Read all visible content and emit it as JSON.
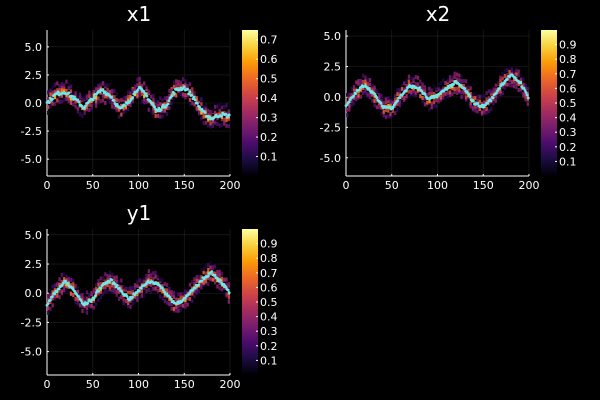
{
  "figure": {
    "background": "#000000",
    "foreground": "#ffffff",
    "trace_color": "#6ee6f0"
  },
  "colormap": [
    "#000004",
    "#1b0c41",
    "#4a0c6b",
    "#781c6d",
    "#a52c60",
    "#cf4446",
    "#ed6925",
    "#fb9b06",
    "#f7d13d",
    "#fcffa4"
  ],
  "chart_data": [
    {
      "type": "heatmap",
      "title": "x1",
      "xlim": [
        0,
        200
      ],
      "ylim": [
        -6.5,
        6.5
      ],
      "xticks": [
        "0",
        "50",
        "100",
        "150",
        "200"
      ],
      "yticks": [
        "-5.0",
        "-2.5",
        "0.0",
        "2.5",
        "5.0"
      ],
      "colorbar": {
        "min": 0.0,
        "max": 0.75,
        "ticks": [
          "0.1",
          "0.2",
          "0.3",
          "0.4",
          "0.5",
          "0.6",
          "0.7"
        ]
      },
      "trace": {
        "mean": [
          0,
          0.8,
          1.0,
          0.4,
          -0.4,
          0.4,
          1.2,
          0.6,
          -0.6,
          0.2,
          1.4,
          0.5,
          -0.7,
          -0.2,
          1.1,
          1.4,
          0.5,
          -0.8,
          -1.4,
          -1.0,
          -1.2
        ],
        "noise": 0.55
      }
    },
    {
      "type": "heatmap",
      "title": "x2",
      "xlim": [
        0,
        200
      ],
      "ylim": [
        -6.5,
        5.5
      ],
      "xticks": [
        "0",
        "50",
        "100",
        "150",
        "200"
      ],
      "yticks": [
        "-5.0",
        "-2.5",
        "0.0",
        "2.5",
        "5.0"
      ],
      "colorbar": {
        "min": 0.0,
        "max": 1.0,
        "ticks": [
          "0.1",
          "0.2",
          "0.3",
          "0.4",
          "0.5",
          "0.6",
          "0.7",
          "0.8",
          "0.9"
        ]
      },
      "trace": {
        "mean": [
          -0.8,
          0.3,
          1.0,
          0.3,
          -0.8,
          -0.9,
          0.1,
          0.9,
          0.7,
          -0.2,
          0.1,
          0.7,
          1.2,
          0.6,
          -0.5,
          -0.8,
          -0.1,
          1.0,
          1.8,
          1.2,
          -0.1
        ],
        "noise": 0.35
      }
    },
    {
      "type": "heatmap",
      "title": "y1",
      "xlim": [
        0,
        200
      ],
      "ylim": [
        -7,
        5.5
      ],
      "xticks": [
        "0",
        "50",
        "100",
        "150",
        "200"
      ],
      "yticks": [
        "-5.0",
        "-2.5",
        "0.0",
        "2.5",
        "5.0"
      ],
      "colorbar": {
        "min": 0.0,
        "max": 1.0,
        "ticks": [
          "0.1",
          "0.2",
          "0.3",
          "0.4",
          "0.5",
          "0.6",
          "0.7",
          "0.8",
          "0.9"
        ]
      },
      "trace": {
        "mean": [
          -1.0,
          0.2,
          1.0,
          0.2,
          -1.0,
          -0.5,
          0.7,
          1.1,
          0.3,
          -0.5,
          0.2,
          1.0,
          0.9,
          0.0,
          -0.9,
          -0.5,
          0.3,
          1.2,
          1.8,
          1.0,
          0.0
        ],
        "noise": 0.4
      }
    }
  ]
}
